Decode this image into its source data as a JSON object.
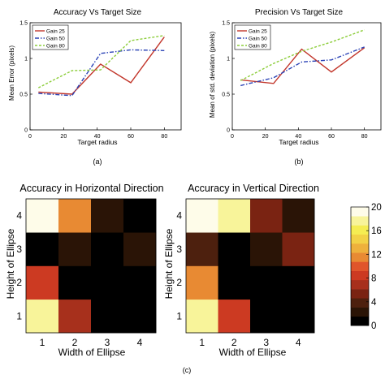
{
  "panel_labels": [
    "(a)",
    "(b)",
    "(c)"
  ],
  "colors": {
    "gain25": "#c2362b",
    "gain50": "#2b43b6",
    "gain80": "#8ccd3a"
  },
  "chart_data": [
    {
      "type": "line",
      "title": "Accuracy Vs Target Size",
      "xlabel": "Target radius",
      "ylabel": "Mean Error (pixels)",
      "xlim": [
        0,
        90
      ],
      "ylim": [
        0,
        1.5
      ],
      "xticks": [
        0,
        20,
        40,
        60,
        80
      ],
      "yticks": [
        0,
        0.5,
        1,
        1.5
      ],
      "yticklabels": [
        "0",
        "0.5",
        "1",
        "1.5"
      ],
      "grid": false,
      "legend_position": "top-left",
      "x": [
        5,
        25,
        42,
        60,
        80
      ],
      "series": [
        {
          "name": "Gain 25",
          "color": "#c2362b",
          "dash": "solid",
          "values": [
            0.53,
            0.5,
            0.92,
            0.66,
            1.3
          ]
        },
        {
          "name": "Gain 50",
          "color": "#2b43b6",
          "dash": "dashdot",
          "values": [
            0.51,
            0.48,
            1.07,
            1.12,
            1.11
          ]
        },
        {
          "name": "Gain 80",
          "color": "#8ccd3a",
          "dash": "dashed",
          "values": [
            0.59,
            0.83,
            0.84,
            1.25,
            1.32
          ]
        }
      ]
    },
    {
      "type": "line",
      "title": "Precision Vs Target Size",
      "xlabel": "Target radius",
      "ylabel": "Mean of std. deviation (pixels)",
      "xlim": [
        0,
        90
      ],
      "ylim": [
        0,
        1.5
      ],
      "xticks": [
        0,
        20,
        40,
        60,
        80
      ],
      "yticks": [
        0,
        0.5,
        1,
        1.5
      ],
      "yticklabels": [
        "0",
        "0.5",
        "1",
        "1.5"
      ],
      "grid": false,
      "legend_position": "top-left",
      "x": [
        5,
        25,
        42,
        60,
        80
      ],
      "series": [
        {
          "name": "Gain 25",
          "color": "#c2362b",
          "dash": "solid",
          "values": [
            0.7,
            0.65,
            1.13,
            0.81,
            1.15
          ]
        },
        {
          "name": "Gain 50",
          "color": "#2b43b6",
          "dash": "dashdot",
          "values": [
            0.62,
            0.73,
            0.95,
            0.98,
            1.16
          ]
        },
        {
          "name": "Gain 80",
          "color": "#8ccd3a",
          "dash": "dashed",
          "values": [
            0.69,
            0.93,
            1.1,
            1.23,
            1.4
          ]
        }
      ]
    },
    {
      "type": "heatmap",
      "title": "Accuracy in Horizontal Direction",
      "xlabel": "Width of Ellipse",
      "ylabel": "Height of Ellipse",
      "x_categories": [
        "1",
        "2",
        "3",
        "4"
      ],
      "y_categories": [
        "1",
        "2",
        "3",
        "4"
      ],
      "values": [
        [
          17,
          7,
          0,
          0
        ],
        [
          9,
          0,
          0,
          0
        ],
        [
          0,
          3,
          0,
          3
        ],
        [
          20,
          11,
          3,
          0
        ]
      ]
    },
    {
      "type": "heatmap",
      "title": "Accuracy in Vertical Direction",
      "xlabel": "Width of Ellipse",
      "ylabel": "Height of Ellipse",
      "x_categories": [
        "1",
        "2",
        "3",
        "4"
      ],
      "y_categories": [
        "1",
        "2",
        "3",
        "4"
      ],
      "values": [
        [
          17,
          9,
          0,
          0
        ],
        [
          11,
          0,
          0,
          0
        ],
        [
          4,
          0,
          3,
          6
        ],
        [
          20,
          17,
          5,
          3
        ]
      ]
    },
    {
      "type": "colorbar",
      "range": [
        0,
        20
      ],
      "ticks": [
        0,
        4,
        8,
        12,
        16,
        20
      ],
      "colors": [
        "#000000",
        "#2a1406",
        "#4d200e",
        "#7a2312",
        "#a7301c",
        "#cc3a22",
        "#e0552b",
        "#e88a33",
        "#eeb13c",
        "#f2d246",
        "#f5ed52",
        "#f8f49a",
        "#fefce9"
      ]
    }
  ]
}
